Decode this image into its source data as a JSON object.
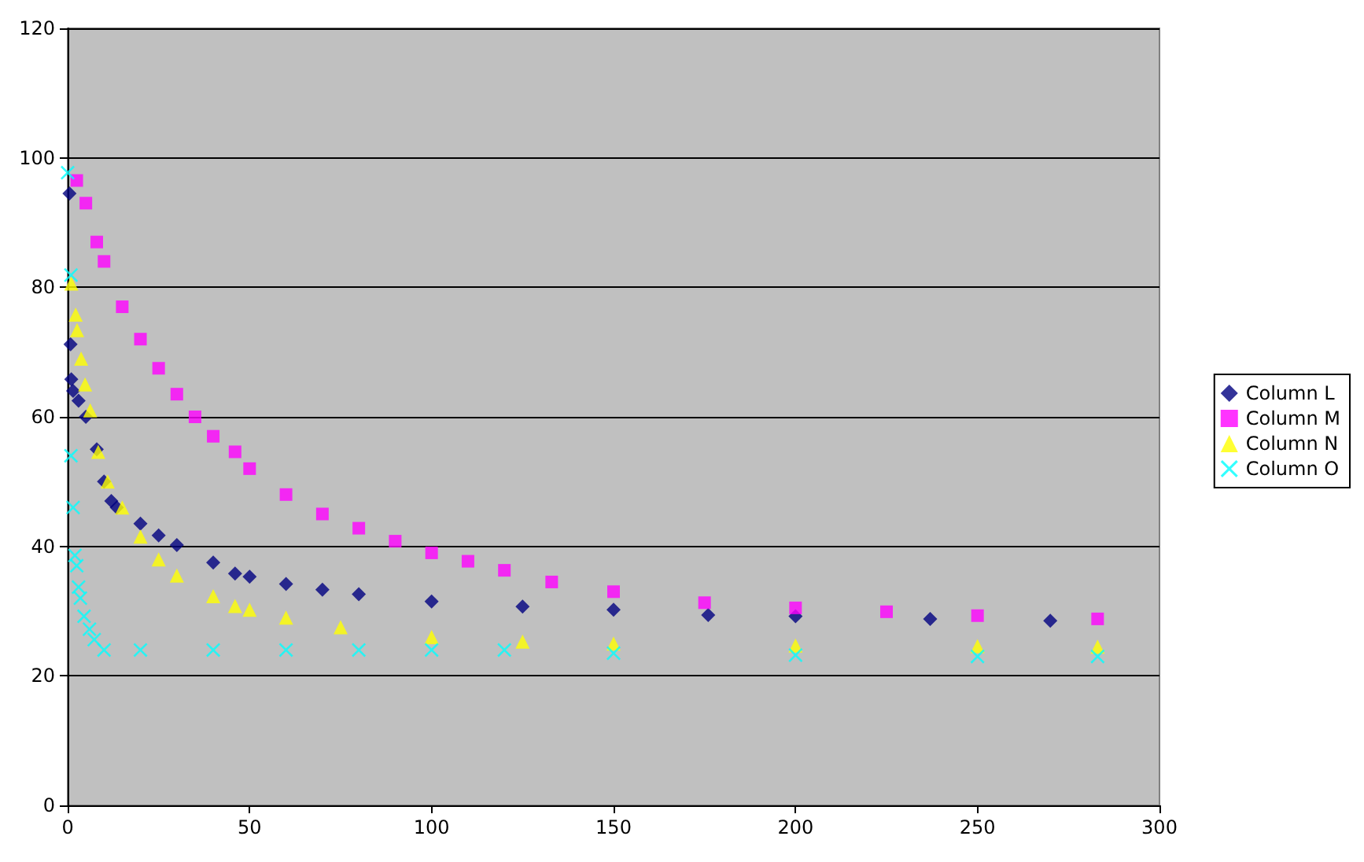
{
  "chart_data": {
    "type": "scatter",
    "xlim": [
      0,
      300
    ],
    "xticks": [
      0,
      50,
      100,
      150,
      200,
      250,
      300
    ],
    "ylim": [
      0,
      120
    ],
    "yticks": [
      0,
      20,
      40,
      60,
      80,
      100,
      120
    ],
    "grid": "y",
    "legend": "right",
    "series": [
      {
        "name": "Column L",
        "color": "#000080",
        "marker": "diamond",
        "x": [
          0.5,
          0.8,
          1,
          1.5,
          3,
          5,
          8,
          10,
          12,
          13.5,
          20,
          25,
          30,
          40,
          46,
          50,
          60,
          70,
          80,
          100,
          125,
          150,
          176,
          200,
          237,
          270
        ],
        "values": [
          94.5,
          71.2,
          65.8,
          64,
          62.5,
          60,
          55,
          50,
          47,
          46,
          43.5,
          41.7,
          40.2,
          37.5,
          35.8,
          35.3,
          34.2,
          33.3,
          32.6,
          31.5,
          30.7,
          30.2,
          29.4,
          29.2,
          28.8,
          28.5
        ]
      },
      {
        "name": "Column M",
        "color": "#ff00ff",
        "marker": "square",
        "x": [
          2.5,
          5,
          8,
          10,
          15,
          20,
          25,
          30,
          35,
          40,
          46,
          50,
          60,
          70,
          80,
          90,
          100,
          110,
          120,
          133,
          150,
          175,
          200,
          225,
          250,
          283
        ],
        "values": [
          96.5,
          93,
          87,
          84,
          77,
          72,
          67.5,
          63.5,
          60,
          57,
          54.6,
          52,
          48,
          45,
          42.8,
          40.8,
          39,
          37.7,
          36.3,
          34.5,
          33,
          31.3,
          30.5,
          29.9,
          29.3,
          28.8
        ]
      },
      {
        "name": "Column N",
        "color": "#ffff00",
        "marker": "triangle",
        "x": [
          1,
          2.2,
          2.6,
          3.7,
          4.8,
          6.2,
          8.4,
          11,
          15,
          20,
          25,
          30,
          40,
          46,
          50,
          60,
          75,
          100,
          125,
          150,
          200,
          250,
          283
        ],
        "values": [
          80.6,
          75.8,
          73.4,
          69,
          65,
          61,
          54.6,
          50,
          46,
          41.5,
          38,
          35.5,
          32.3,
          30.8,
          30.2,
          29,
          27.5,
          26,
          25.3,
          25,
          24.7,
          24.6,
          24.5
        ]
      },
      {
        "name": "Column O",
        "color": "#00ffff",
        "marker": "cross",
        "x": [
          0,
          0.9,
          0.9,
          1.5,
          2,
          2.5,
          3,
          3.5,
          4.5,
          6,
          7.3,
          10,
          20,
          40,
          60,
          80,
          100,
          120,
          150,
          200,
          250,
          283
        ],
        "values": [
          97.7,
          81.9,
          54,
          46,
          38.6,
          37,
          33.7,
          32,
          29.2,
          27.2,
          25.6,
          24,
          24,
          24,
          24,
          24,
          24,
          24,
          23.5,
          23.2,
          23,
          23
        ]
      }
    ]
  }
}
